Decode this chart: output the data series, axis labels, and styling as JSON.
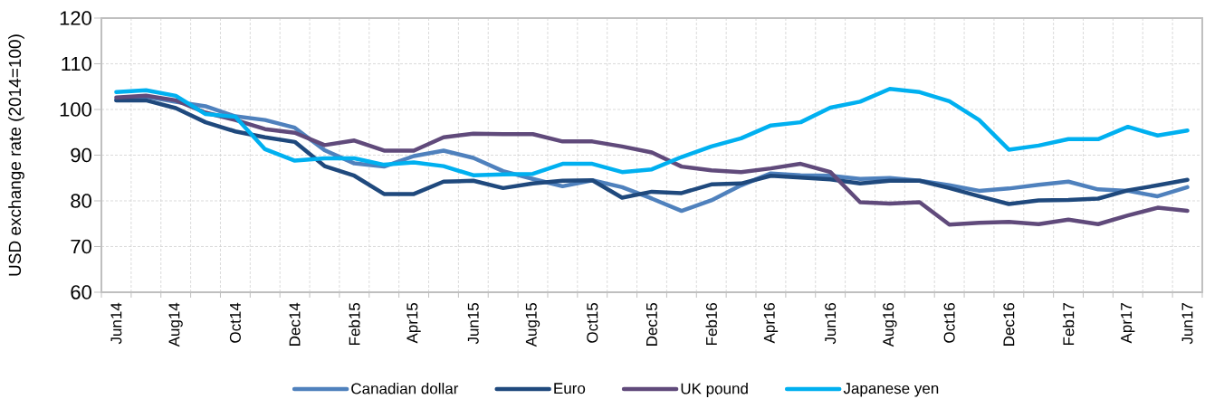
{
  "chart_data": {
    "type": "line",
    "ylabel": "USD exchange rate (2014=100)",
    "categories": [
      "Jun14",
      null,
      "Aug14",
      null,
      "Oct14",
      null,
      "Dec14",
      null,
      "Feb15",
      null,
      "Apr15",
      null,
      "Jun15",
      null,
      "Aug15",
      null,
      "Oct15",
      null,
      "Dec15",
      null,
      "Feb16",
      null,
      "Apr16",
      null,
      "Jun16",
      null,
      "Aug16",
      null,
      "Oct16",
      null,
      "Dec16",
      null,
      "Feb17",
      null,
      "Apr17",
      null,
      "Jun17"
    ],
    "series": [
      {
        "name": "Canadian dollar",
        "color": "#4f81bd",
        "values": [
          102.1,
          102.8,
          101.7,
          100.7,
          98.5,
          97.7,
          96.0,
          91.1,
          88.2,
          87.5,
          89.8,
          91.0,
          89.4,
          86.5,
          84.8,
          83.2,
          84.5,
          83.0,
          80.5,
          77.8,
          80.1,
          83.4,
          86.0,
          85.6,
          85.5,
          84.8,
          85.0,
          84.4,
          83.4,
          82.2,
          82.7,
          83.5,
          84.2,
          82.5,
          82.2,
          81.0,
          83.0
        ]
      },
      {
        "name": "Euro",
        "color": "#1f497d",
        "values": [
          102.0,
          102.0,
          100.3,
          97.2,
          95.2,
          93.9,
          92.9,
          87.6,
          85.5,
          81.5,
          81.5,
          84.2,
          84.4,
          82.8,
          83.8,
          84.4,
          84.5,
          80.7,
          82.0,
          81.7,
          83.6,
          83.8,
          85.5,
          85.1,
          84.7,
          83.8,
          84.4,
          84.4,
          82.8,
          81.0,
          79.3,
          80.1,
          80.2,
          80.5,
          82.3,
          83.4,
          84.6
        ]
      },
      {
        "name": "UK pound",
        "color": "#604a7b",
        "values": [
          102.6,
          103.0,
          102.0,
          99.3,
          97.7,
          95.7,
          94.9,
          92.2,
          93.2,
          91.0,
          91.0,
          93.9,
          94.7,
          94.6,
          94.6,
          93.0,
          93.0,
          91.9,
          90.6,
          87.5,
          86.7,
          86.3,
          87.1,
          88.1,
          86.3,
          79.7,
          79.4,
          79.7,
          74.8,
          75.2,
          75.4,
          74.9,
          75.9,
          74.9,
          76.8,
          78.5,
          77.8
        ]
      },
      {
        "name": "Japanese yen",
        "color": "#00b0f0",
        "values": [
          103.8,
          104.2,
          103.0,
          99.0,
          98.4,
          91.3,
          88.8,
          89.3,
          89.3,
          87.9,
          88.4,
          87.6,
          85.6,
          85.8,
          85.9,
          88.1,
          88.1,
          86.3,
          86.9,
          89.6,
          91.9,
          93.7,
          96.5,
          97.2,
          100.4,
          101.7,
          104.5,
          103.8,
          101.8,
          97.7,
          91.2,
          92.1,
          93.5,
          93.5,
          96.2,
          94.3,
          95.4
        ]
      }
    ],
    "ylim": [
      60,
      120
    ],
    "yticks": [
      60,
      70,
      80,
      90,
      100,
      110,
      120
    ],
    "grid": true,
    "legend": "bottom",
    "line_style": "solid"
  }
}
